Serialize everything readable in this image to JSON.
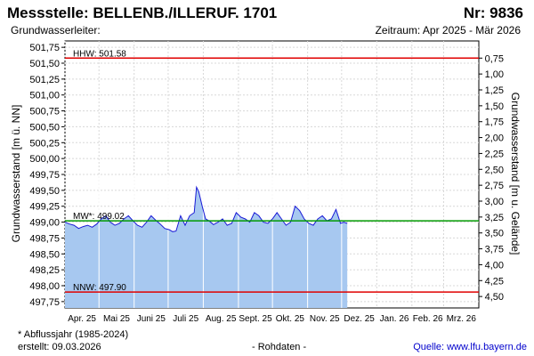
{
  "header": {
    "station_title": "Messstelle: BELLENB./ILLERUF. 1701",
    "station_number": "Nr: 9836",
    "aquifer": "Grundwasserleiter:",
    "period": "Zeitraum: Apr 2025 - Mär 2026"
  },
  "footer": {
    "note": "* Abflussjahr (1985-2024)",
    "created": "erstellt:  09.03.2026",
    "data_type": "- Rohdaten -",
    "source": "Quelle: www.lfu.bayern.de"
  },
  "colors": {
    "fill": "#a7c8f0",
    "line": "#1a1ad6",
    "mw": "#009a00",
    "limits": "#e00000",
    "grid": "#d8d8d8"
  },
  "chart_data": {
    "type": "area",
    "ylabel": "Grundwasserstand [m ü. NN]",
    "ylabel_right": "Grundwasserstand [m u. Gelände]",
    "ylim": [
      497.65,
      501.85
    ],
    "yticks": [
      "501,75",
      "501,50",
      "501,25",
      "501,00",
      "500,75",
      "500,50",
      "500,25",
      "500,00",
      "499,75",
      "499,50",
      "499,25",
      "499,00",
      "498,75",
      "498,50",
      "498,25",
      "498,00",
      "497,75"
    ],
    "ytick_values": [
      501.75,
      501.5,
      501.25,
      501.0,
      500.75,
      500.5,
      500.25,
      500.0,
      499.75,
      499.5,
      499.25,
      499.0,
      498.75,
      498.5,
      498.25,
      498.0,
      497.75
    ],
    "yticks_right": [
      "0,75",
      "1,00",
      "1,25",
      "1,50",
      "1,75",
      "2,00",
      "2,25",
      "2,50",
      "2,75",
      "3,00",
      "3,25",
      "3,50",
      "3,75",
      "4,00",
      "4,25",
      "4,50"
    ],
    "ytick_right_values": [
      0.75,
      1.0,
      1.25,
      1.5,
      1.75,
      2.0,
      2.25,
      2.5,
      2.75,
      3.0,
      3.25,
      3.5,
      3.75,
      4.0,
      4.25,
      4.5
    ],
    "ground_level": 502.33,
    "xlim": [
      "2025-04-01",
      "2026-03-31"
    ],
    "month_starts": [
      "2025-04-01",
      "2025-05-01",
      "2025-06-01",
      "2025-07-01",
      "2025-08-01",
      "2025-09-01",
      "2025-10-01",
      "2025-11-01",
      "2025-12-01",
      "2026-01-01",
      "2026-02-01",
      "2026-03-01"
    ],
    "month_labels": [
      "Apr. 25",
      "Mai 25",
      "Juni 25",
      "Juli 25",
      "Aug. 25",
      "Sept. 25",
      "Okt. 25",
      "Nov. 25",
      "Dez. 25",
      "Jan. 26",
      "Feb. 26",
      "Mrz. 26"
    ],
    "reference_lines": [
      {
        "label": "HHW: 501.58",
        "value": 501.58,
        "kind": "limits"
      },
      {
        "label": "MW*: 499.02",
        "value": 499.02,
        "kind": "mw"
      },
      {
        "label": "NNW: 497.90",
        "value": 497.9,
        "kind": "limits"
      }
    ],
    "series": [
      {
        "x": [
          "2025-04-01",
          "2025-04-05",
          "2025-04-09",
          "2025-04-13",
          "2025-04-17",
          "2025-04-21",
          "2025-04-25",
          "2025-04-29",
          "2025-05-03",
          "2025-05-07",
          "2025-05-11",
          "2025-05-15",
          "2025-05-19",
          "2025-05-23",
          "2025-05-27",
          "2025-05-31",
          "2025-06-04",
          "2025-06-08",
          "2025-06-12",
          "2025-06-16",
          "2025-06-20",
          "2025-06-24",
          "2025-06-28",
          "2025-07-02",
          "2025-07-05",
          "2025-07-08",
          "2025-07-12",
          "2025-07-16",
          "2025-07-20",
          "2025-07-24",
          "2025-07-26",
          "2025-07-28",
          "2025-07-31",
          "2025-08-03",
          "2025-08-06",
          "2025-08-10",
          "2025-08-14",
          "2025-08-18",
          "2025-08-22",
          "2025-08-26",
          "2025-08-30",
          "2025-09-03",
          "2025-09-07",
          "2025-09-11",
          "2025-09-15",
          "2025-09-19",
          "2025-09-23",
          "2025-09-27",
          "2025-10-01",
          "2025-10-05",
          "2025-10-09",
          "2025-10-13",
          "2025-10-17",
          "2025-10-21",
          "2025-10-25",
          "2025-10-29",
          "2025-11-02",
          "2025-11-06",
          "2025-11-10",
          "2025-11-14",
          "2025-11-18",
          "2025-11-22",
          "2025-11-26",
          "2025-11-30",
          "2025-12-03",
          "2025-12-06"
        ],
        "values": [
          499.0,
          498.97,
          498.95,
          498.9,
          498.93,
          498.95,
          498.92,
          498.97,
          499.05,
          499.1,
          499.0,
          498.95,
          498.98,
          499.05,
          499.1,
          499.02,
          498.95,
          498.92,
          499.0,
          499.1,
          499.03,
          498.97,
          498.9,
          498.88,
          498.85,
          498.86,
          499.1,
          498.95,
          499.1,
          499.15,
          499.55,
          499.48,
          499.25,
          499.05,
          499.02,
          498.96,
          499.0,
          499.05,
          498.95,
          498.98,
          499.15,
          499.08,
          499.05,
          499.0,
          499.15,
          499.1,
          499.0,
          498.98,
          499.05,
          499.15,
          499.05,
          498.95,
          499.0,
          499.25,
          499.18,
          499.05,
          498.98,
          498.95,
          499.05,
          499.1,
          499.02,
          499.05,
          499.2,
          498.98,
          499.0,
          498.98
        ]
      }
    ]
  }
}
